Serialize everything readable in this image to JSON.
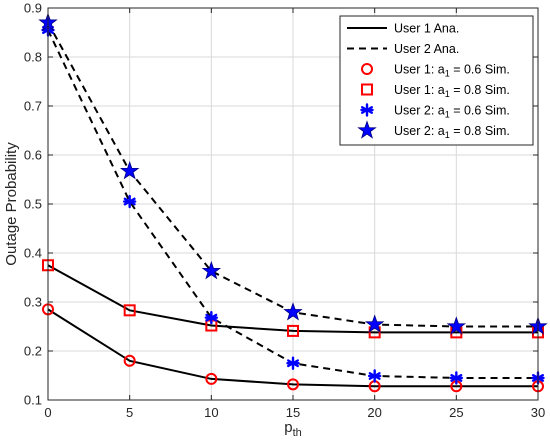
{
  "chart_data": {
    "type": "line",
    "title": "",
    "xlabel": "p",
    "xlabel_sub": "th",
    "ylabel": "Outage Probability",
    "xlim": [
      0,
      30
    ],
    "ylim": [
      0.1,
      0.9
    ],
    "x_ticks": [
      0,
      5,
      10,
      15,
      20,
      25,
      30
    ],
    "y_ticks": [
      0.1,
      0.2,
      0.3,
      0.4,
      0.5,
      0.6,
      0.7,
      0.8,
      0.9
    ],
    "grid": true,
    "legend_position": "top-right",
    "x": [
      0,
      5,
      10,
      15,
      20,
      25,
      30
    ],
    "series": [
      {
        "name": "User 1 Ana.",
        "kind": "line",
        "style": "solid",
        "color": "#000000",
        "curves": [
          [
            0.375,
            0.283,
            0.252,
            0.241,
            0.238,
            0.238,
            0.238
          ],
          [
            0.285,
            0.18,
            0.143,
            0.132,
            0.128,
            0.128,
            0.128
          ]
        ]
      },
      {
        "name": "User 2 Ana.",
        "kind": "line",
        "style": "dashed",
        "color": "#000000",
        "curves": [
          [
            0.87,
            0.567,
            0.363,
            0.279,
            0.254,
            0.25,
            0.25
          ],
          [
            0.855,
            0.505,
            0.268,
            0.175,
            0.149,
            0.145,
            0.145
          ]
        ]
      },
      {
        "name": "User 1: a",
        "name_sub": "1",
        "name_suffix": " = 0.6 Sim.",
        "kind": "marker",
        "marker": "circle",
        "color": "#ff0000",
        "values": [
          0.285,
          0.18,
          0.143,
          0.132,
          0.128,
          0.128,
          0.128
        ]
      },
      {
        "name": "User 1: a",
        "name_sub": "1",
        "name_suffix": " = 0.8 Sim.",
        "kind": "marker",
        "marker": "square",
        "color": "#ff0000",
        "values": [
          0.375,
          0.283,
          0.252,
          0.241,
          0.238,
          0.238,
          0.238
        ]
      },
      {
        "name": "User 2: a",
        "name_sub": "1",
        "name_suffix": " = 0.6 Sim.",
        "kind": "marker",
        "marker": "asterisk",
        "color": "#0000ff",
        "values": [
          0.855,
          0.505,
          0.268,
          0.175,
          0.149,
          0.145,
          0.145
        ]
      },
      {
        "name": "User 2: a",
        "name_sub": "1",
        "name_suffix": " = 0.8 Sim.",
        "kind": "marker",
        "marker": "star",
        "color": "#0000ff",
        "values": [
          0.87,
          0.567,
          0.363,
          0.279,
          0.254,
          0.25,
          0.25
        ]
      }
    ]
  }
}
